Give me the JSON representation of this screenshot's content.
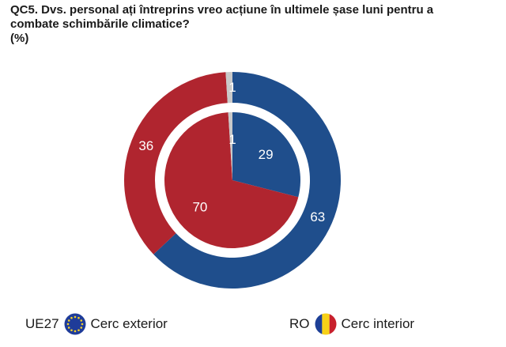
{
  "title": {
    "line1": "QC5. Dvs. personal ați întreprins vreo acțiune în ultimele șase luni pentru a",
    "line2": "combate schimbările climatice?",
    "line3": "(%)"
  },
  "legend": {
    "eu_code": "UE27",
    "eu_label": "Cerc exterior",
    "ro_code": "RO",
    "ro_label": "Cerc interior"
  },
  "colors": {
    "blue": "#1f4e8c",
    "red": "#b0252f",
    "grey": "#c9c9c9"
  },
  "chart_data": [
    {
      "type": "pie",
      "subtype": "donut",
      "ring": "outer",
      "legend_entry": "UE27 – Cerc exterior",
      "values": [
        63,
        36,
        1
      ],
      "labels": [
        "63",
        "36",
        "1"
      ],
      "colors": [
        "#1f4e8c",
        "#b0252f",
        "#c9c9c9"
      ]
    },
    {
      "type": "pie",
      "ring": "inner",
      "legend_entry": "RO – Cerc interior",
      "values": [
        29,
        70,
        1
      ],
      "labels": [
        "29",
        "70",
        "1"
      ],
      "colors": [
        "#1f4e8c",
        "#b0252f",
        "#c9c9c9"
      ]
    }
  ]
}
